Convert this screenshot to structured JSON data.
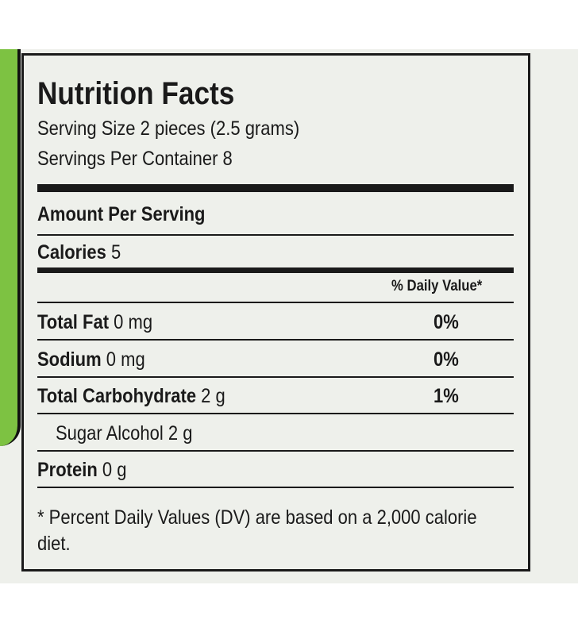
{
  "label": {
    "title": "Nutrition Facts",
    "serving_size": "Serving Size 2 pieces (2.5 grams)",
    "servings_per_container": "Servings Per Container 8",
    "amount_per_serving": "Amount Per Serving",
    "calories": {
      "label": "Calories",
      "amount": "5"
    },
    "daily_value_header": "% Daily Value*",
    "rows": [
      {
        "label": "Total Fat",
        "amount": "0 mg",
        "daily_value": "0%"
      },
      {
        "label": "Sodium",
        "amount": "0 mg",
        "daily_value": "0%"
      },
      {
        "label": "Total Carbohydrate",
        "amount": "2 g",
        "daily_value": "1%"
      },
      {
        "label": "Sugar Alcohol",
        "amount": "2 g",
        "indent": true
      },
      {
        "label": "Protein",
        "amount": "0 g"
      }
    ],
    "footnote": "* Percent Daily Values (DV) are based on a 2,000 calorie diet."
  }
}
